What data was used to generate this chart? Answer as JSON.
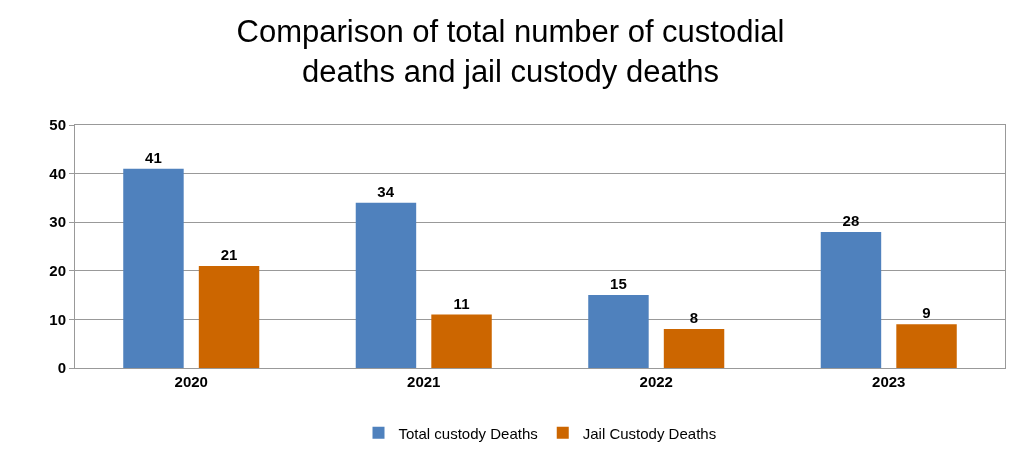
{
  "chart_data": {
    "type": "bar",
    "title": "Comparison of total number of custodial deaths and jail custody deaths",
    "categories": [
      "2020",
      "2021",
      "2022",
      "2023"
    ],
    "series": [
      {
        "name": "Total custody Deaths",
        "color": "#4f81bd",
        "values": [
          41,
          34,
          15,
          28
        ]
      },
      {
        "name": "Jail Custody Deaths",
        "color": "#cc6600",
        "values": [
          21,
          11,
          8,
          9
        ]
      }
    ],
    "ylim": [
      0,
      50
    ],
    "yticks": [
      0,
      10,
      20,
      30,
      40,
      50
    ],
    "grid": "y",
    "legend": "bottom",
    "data_labels": true
  }
}
